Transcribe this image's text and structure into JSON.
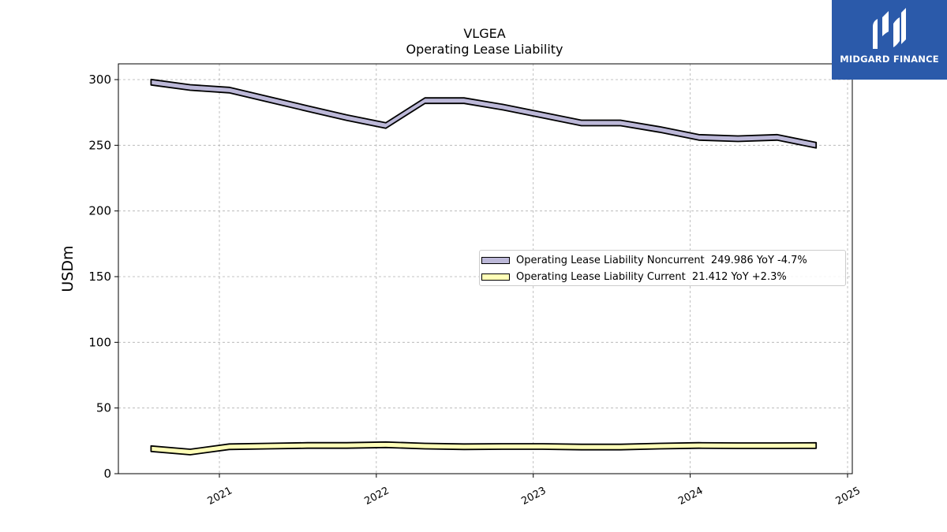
{
  "chart_data": {
    "type": "area",
    "title": "VLGEA",
    "subtitle": "Operating Lease Liability",
    "ylabel": "USDm",
    "xlabel": "",
    "ylim": [
      0,
      312
    ],
    "yticks": [
      0,
      50,
      100,
      150,
      200,
      250,
      300
    ],
    "xticks": [
      "2021",
      "2022",
      "2023",
      "2024",
      "2025"
    ],
    "grid": true,
    "legend_position": "center-right",
    "series": [
      {
        "name": "Operating Lease Liability Noncurrent",
        "legend_label": "Operating Lease Liability Noncurrent  249.986 YoY -4.7%",
        "color": "#bcb8d8",
        "points": [
          [
            "2020-07-26",
            298
          ],
          [
            "2020-10-25",
            294
          ],
          [
            "2021-01-24",
            292
          ],
          [
            "2021-04-25",
            285
          ],
          [
            "2021-07-25",
            278
          ],
          [
            "2021-10-24",
            271
          ],
          [
            "2022-01-23",
            265
          ],
          [
            "2022-04-24",
            284
          ],
          [
            "2022-07-24",
            284
          ],
          [
            "2022-10-23",
            279
          ],
          [
            "2023-01-22",
            273
          ],
          [
            "2023-04-23",
            267
          ],
          [
            "2023-07-23",
            267
          ],
          [
            "2023-10-22",
            262
          ],
          [
            "2024-01-21",
            256
          ],
          [
            "2024-04-21",
            255
          ],
          [
            "2024-07-21",
            256
          ],
          [
            "2024-10-20",
            250
          ]
        ]
      },
      {
        "name": "Operating Lease Liability Current",
        "legend_label": "Operating Lease Liability Current  21.412 YoY +2.3%",
        "color": "#ffffb8",
        "points": [
          [
            "2020-07-26",
            19
          ],
          [
            "2020-10-25",
            16.5
          ],
          [
            "2021-01-24",
            20.5
          ],
          [
            "2021-04-25",
            21
          ],
          [
            "2021-07-25",
            21.5
          ],
          [
            "2021-10-24",
            21.5
          ],
          [
            "2022-01-23",
            22
          ],
          [
            "2022-04-24",
            21
          ],
          [
            "2022-07-24",
            20.5
          ],
          [
            "2022-10-23",
            20.7
          ],
          [
            "2023-01-22",
            20.7
          ],
          [
            "2023-04-23",
            20.3
          ],
          [
            "2023-07-23",
            20.3
          ],
          [
            "2023-10-22",
            21
          ],
          [
            "2024-01-21",
            21.5
          ],
          [
            "2024-04-21",
            21.3
          ],
          [
            "2024-07-21",
            21.3
          ],
          [
            "2024-10-20",
            21.4
          ]
        ]
      }
    ]
  },
  "logo": {
    "text": "MIDGARD FINANCE",
    "color": "#2b5aaa"
  }
}
